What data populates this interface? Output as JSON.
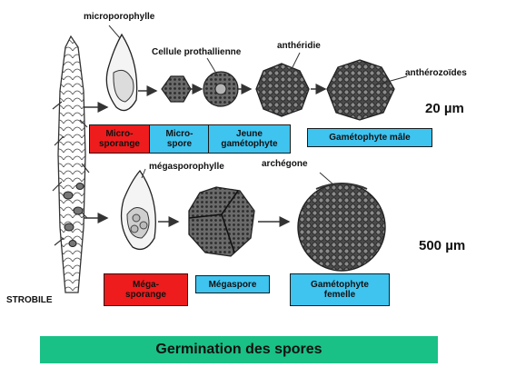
{
  "labels": {
    "microporophylle": "microporophylle",
    "cellule": "Cellule prothallienne",
    "antheridie": "anthéridie",
    "antherozoides": "anthérozoïdes",
    "megasporophylle": "mégasporophylle",
    "archegone": "archégone",
    "strobile": "STROBILE"
  },
  "scales": {
    "top": "20 µm",
    "bottom": "500 µm"
  },
  "boxes": {
    "microsporange_l1": "Micro-",
    "microsporange_l2": "sporange",
    "microspore_l1": "Micro-",
    "microspore_l2": "spore",
    "jeune_l1": "Jeune",
    "jeune_l2": "gamétophyte",
    "gameto_male": "Gamétophyte mâle",
    "megasporange_l1": "Méga-",
    "megasporange_l2": "sporange",
    "megaspore": "Mégaspore",
    "gameto_fem_l1": "Gamétophyte",
    "gameto_fem_l2": "femelle"
  },
  "title": "Germination des spores",
  "colors": {
    "red": "#ee1c1c",
    "blue": "#3fc3ef",
    "banner": "#19c186"
  }
}
